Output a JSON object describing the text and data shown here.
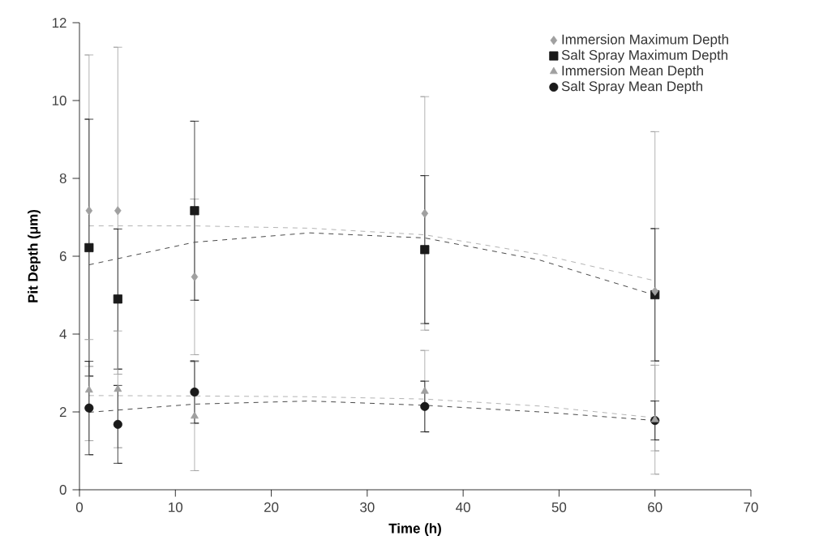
{
  "chart_data": {
    "type": "scatter",
    "xlabel": "Time (h)",
    "ylabel": "Pit Depth (μm)",
    "xlim": [
      0,
      70
    ],
    "ylim": [
      0,
      12
    ],
    "xticks": [
      0,
      10,
      20,
      30,
      40,
      50,
      60,
      70
    ],
    "yticks": [
      0,
      2,
      4,
      6,
      8,
      10,
      12
    ],
    "x": [
      1,
      4,
      12,
      36,
      60
    ],
    "legend": "top right",
    "grid": false,
    "series": [
      {
        "name": "Immersion Maximum Depth",
        "color": "#a0a0a0",
        "marker": "diamond",
        "values": [
          7.17,
          7.17,
          5.47,
          7.1,
          5.1
        ],
        "errors": [
          4.0,
          4.2,
          2.0,
          3.0,
          4.1
        ],
        "line_style": "dashed"
      },
      {
        "name": "Salt Spray Maximum Depth",
        "color": "#1a1a1a",
        "marker": "square",
        "values": [
          6.22,
          4.9,
          7.17,
          6.17,
          5.01
        ],
        "errors": [
          3.3,
          1.8,
          2.3,
          1.9,
          1.7
        ],
        "line_style": "dashed"
      },
      {
        "name": "Immersion Mean Depth",
        "color": "#a0a0a0",
        "marker": "triangle",
        "values": [
          2.56,
          2.58,
          1.89,
          2.53,
          1.8
        ],
        "errors": [
          1.3,
          1.5,
          1.4,
          1.05,
          1.4
        ],
        "line_style": "dashed"
      },
      {
        "name": "Salt Spray Mean Depth",
        "color": "#1a1a1a",
        "marker": "circle",
        "values": [
          2.1,
          1.68,
          2.51,
          2.14,
          1.78
        ],
        "errors": [
          1.2,
          1.0,
          0.8,
          0.65,
          0.5
        ],
        "line_style": "dashed"
      },
      {
        "type": "line",
        "color": "#a0a0a0",
        "marker": "none",
        "line_style": "dashed",
        "x": [
          1,
          12,
          24,
          36,
          48,
          60
        ],
        "values": [
          6.78,
          6.78,
          6.72,
          6.55,
          6.05,
          5.37
        ]
      },
      {
        "type": "line",
        "color": "#1a1a1a",
        "marker": "none",
        "line_style": "dashed",
        "x": [
          1,
          12,
          24,
          36,
          48,
          60
        ],
        "values": [
          5.78,
          6.36,
          6.6,
          6.47,
          5.9,
          5.0
        ]
      },
      {
        "type": "line",
        "color": "#a0a0a0",
        "marker": "none",
        "line_style": "dashed",
        "x": [
          1,
          12,
          24,
          36,
          48,
          60
        ],
        "values": [
          2.42,
          2.41,
          2.39,
          2.33,
          2.15,
          1.85
        ]
      },
      {
        "type": "line",
        "color": "#1a1a1a",
        "marker": "none",
        "line_style": "dashed",
        "x": [
          1,
          12,
          24,
          36,
          48,
          60
        ],
        "values": [
          1.99,
          2.2,
          2.28,
          2.17,
          2.0,
          1.78
        ]
      }
    ]
  }
}
